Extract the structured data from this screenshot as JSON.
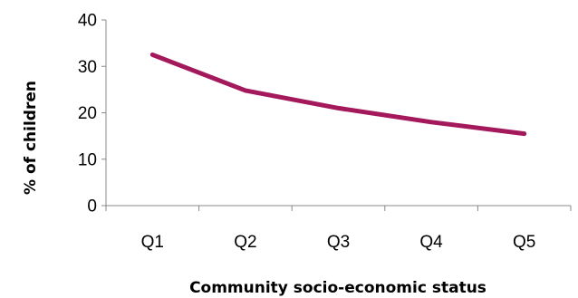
{
  "chart_data": {
    "type": "line",
    "title": "",
    "xlabel": "Community socio-economic status",
    "ylabel": "% of children",
    "categories": [
      "Q1",
      "Q2",
      "Q3",
      "Q4",
      "Q5"
    ],
    "series": [
      {
        "values": [
          32.5,
          24.8,
          21.0,
          18.0,
          15.5
        ]
      }
    ],
    "ylim": [
      0,
      40
    ],
    "yticks": [
      "0",
      "10",
      "20",
      "30",
      "40"
    ],
    "grid": false,
    "legend": "none",
    "colors": {
      "line": "#a3195b",
      "axis": "#898989",
      "text": "#000000"
    }
  }
}
